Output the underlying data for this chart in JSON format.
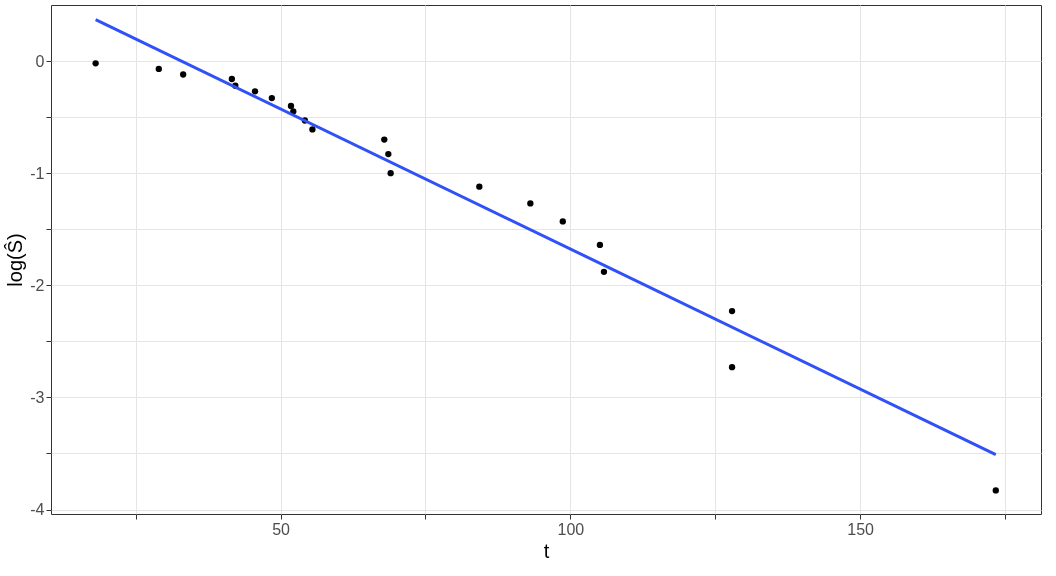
{
  "chart_data": {
    "type": "scatter",
    "xlabel": "t",
    "ylabel": "log(Ŝ)",
    "xlim": [
      10.4,
      181.2
    ],
    "ylim": [
      -4.04,
      0.5
    ],
    "xticks": [
      {
        "value": 25,
        "label": null
      },
      50,
      {
        "value": 75,
        "label": null
      },
      100,
      {
        "value": 125,
        "label": null
      },
      150,
      {
        "value": 175,
        "label": null
      }
    ],
    "yticks": [
      -4,
      {
        "value": -3.5,
        "label": null
      },
      -3,
      {
        "value": -2.5,
        "label": null
      },
      -2,
      {
        "value": -1.5,
        "label": null
      },
      -1,
      {
        "value": -0.5,
        "label": null
      },
      0
    ],
    "grid": true,
    "series": [
      {
        "marker": "circle",
        "color": "#000000",
        "x": [
          18.1,
          29.0,
          33.2,
          41.6,
          42.2,
          45.6,
          48.5,
          51.8,
          52.2,
          54.2,
          55.5,
          67.9,
          68.6,
          69.0,
          84.3,
          93.1,
          98.7,
          105.1,
          105.8,
          127.9,
          127.9,
          173.4
        ],
        "values": [
          -0.02,
          -0.07,
          -0.12,
          -0.16,
          -0.22,
          -0.27,
          -0.33,
          -0.4,
          -0.45,
          -0.53,
          -0.61,
          -0.7,
          -0.83,
          -1.0,
          -1.12,
          -1.27,
          -1.43,
          -1.64,
          -1.88,
          -2.23,
          -2.73,
          -3.83
        ]
      },
      {
        "type": "line",
        "color": "#3050f8",
        "x": [
          18.1,
          173.4
        ],
        "values": [
          0.37,
          -3.51
        ]
      }
    ]
  }
}
